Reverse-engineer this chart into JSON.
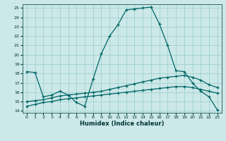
{
  "xlabel": "Humidex (Indice chaleur)",
  "bg_color": "#cce8e8",
  "grid_color": "#99cccc",
  "line_color": "#006666",
  "xlim": [
    -0.5,
    23.5
  ],
  "ylim": [
    13.8,
    25.4
  ],
  "xticks": [
    0,
    1,
    2,
    3,
    4,
    5,
    6,
    7,
    8,
    9,
    10,
    11,
    12,
    13,
    14,
    15,
    16,
    17,
    18,
    19,
    20,
    21,
    22,
    23
  ],
  "yticks": [
    14,
    15,
    16,
    17,
    18,
    19,
    20,
    21,
    22,
    23,
    24,
    25
  ],
  "line1_x": [
    0,
    1,
    2,
    3,
    4,
    5,
    6,
    7,
    8,
    9,
    10,
    11,
    12,
    13,
    14,
    15,
    16,
    17,
    18,
    19,
    20,
    21,
    22,
    23
  ],
  "line1_y": [
    18.2,
    18.1,
    15.5,
    15.7,
    16.1,
    15.7,
    14.9,
    14.5,
    17.4,
    20.1,
    22.0,
    23.2,
    24.8,
    24.9,
    25.0,
    25.1,
    23.3,
    21.0,
    18.3,
    18.2,
    17.0,
    16.1,
    15.5,
    14.1
  ],
  "line2_x": [
    0,
    1,
    2,
    3,
    4,
    5,
    6,
    7,
    8,
    9,
    10,
    11,
    12,
    13,
    14,
    15,
    16,
    17,
    18,
    19,
    20,
    21,
    22,
    23
  ],
  "line2_y": [
    15.0,
    15.1,
    15.2,
    15.4,
    15.6,
    15.7,
    15.8,
    15.9,
    16.0,
    16.1,
    16.3,
    16.5,
    16.7,
    16.9,
    17.1,
    17.3,
    17.5,
    17.6,
    17.7,
    17.8,
    17.6,
    17.3,
    16.8,
    16.5
  ],
  "line3_x": [
    0,
    1,
    2,
    3,
    4,
    5,
    6,
    7,
    8,
    9,
    10,
    11,
    12,
    13,
    14,
    15,
    16,
    17,
    18,
    19,
    20,
    21,
    22,
    23
  ],
  "line3_y": [
    14.5,
    14.7,
    14.9,
    15.0,
    15.2,
    15.3,
    15.4,
    15.5,
    15.6,
    15.7,
    15.8,
    15.9,
    16.0,
    16.1,
    16.2,
    16.3,
    16.4,
    16.5,
    16.6,
    16.6,
    16.5,
    16.3,
    16.1,
    15.9
  ]
}
